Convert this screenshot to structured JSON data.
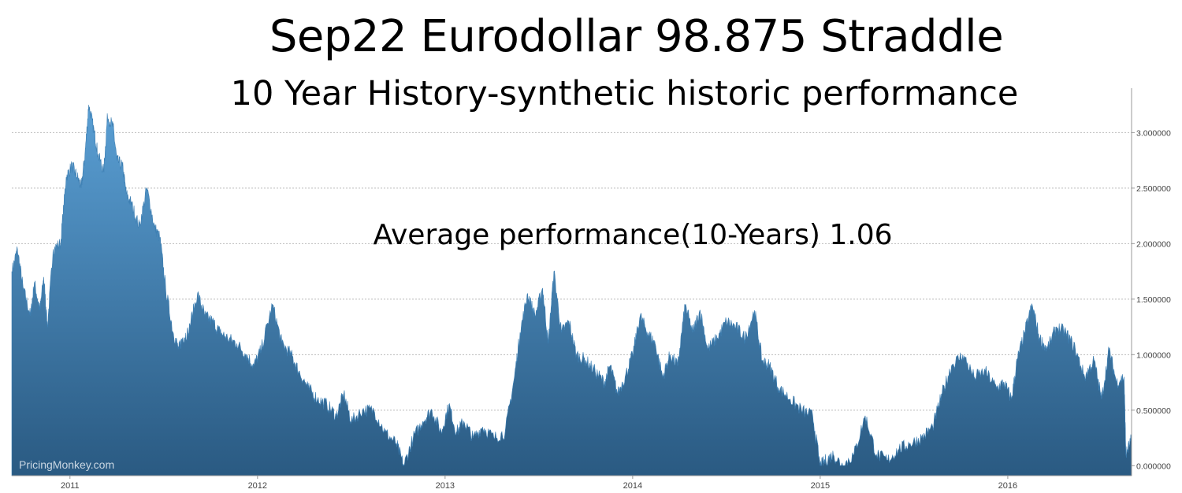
{
  "header": {
    "title": "Sep22 Eurodollar 98.875 Straddle",
    "subtitle": "10 Year History-synthetic historic performance",
    "annotation": "Average performance(10-Years) 1.06",
    "watermark": "PricingMonkey.com"
  },
  "colors": {
    "area_top": "#5a9fd4",
    "area_bottom": "#2a5a82",
    "grid": "#bbbbbb",
    "axis": "#999999"
  },
  "chart_data": {
    "type": "area",
    "title": "Sep22 Eurodollar 98.875 Straddle",
    "subtitle": "10 Year History-synthetic historic performance",
    "xlabel": "",
    "ylabel": "",
    "grid": true,
    "y_axis_position": "right",
    "xlim": [
      2010.69,
      2016.66
    ],
    "ylim": [
      -0.09,
      3.4
    ],
    "y_ticks": [
      0,
      0.5,
      1,
      1.5,
      2,
      2.5,
      3
    ],
    "y_tick_labels": [
      "0.000000",
      "0.500000",
      "1.000000",
      "1.500000",
      "2.000000",
      "2.500000",
      "3.000000"
    ],
    "x_ticks": [
      2011,
      2012,
      2013,
      2014,
      2015,
      2016
    ],
    "x_tick_labels": [
      "2011",
      "2012",
      "2013",
      "2014",
      "2015",
      "2016"
    ],
    "series": [
      {
        "x": [
          2010.69,
          2010.72,
          2010.75,
          2010.79,
          2010.81,
          2010.84,
          2010.86,
          2010.88,
          2010.91,
          2010.95,
          2010.98,
          2011.01,
          2011.04,
          2011.06,
          2011.08,
          2011.1,
          2011.13,
          2011.15,
          2011.18,
          2011.2,
          2011.23,
          2011.25,
          2011.28,
          2011.3,
          2011.33,
          2011.37,
          2011.41,
          2011.45,
          2011.48,
          2011.51,
          2011.55,
          2011.58,
          2011.6,
          2011.63,
          2011.68,
          2011.72,
          2011.76,
          2011.8,
          2011.84,
          2011.89,
          2011.94,
          2011.98,
          2012.02,
          2012.08,
          2012.13,
          2012.18,
          2012.22,
          2012.27,
          2012.32,
          2012.37,
          2012.42,
          2012.46,
          2012.5,
          2012.56,
          2012.62,
          2012.68,
          2012.74,
          2012.78,
          2012.83,
          2012.88,
          2012.93,
          2012.98,
          2013.02,
          2013.06,
          2013.1,
          2013.15,
          2013.2,
          2013.26,
          2013.32,
          2013.37,
          2013.4,
          2013.44,
          2013.48,
          2013.52,
          2013.55,
          2013.58,
          2013.62,
          2013.66,
          2013.7,
          2013.75,
          2013.8,
          2013.85,
          2013.88,
          2013.92,
          2013.96,
          2014.0,
          2014.04,
          2014.08,
          2014.12,
          2014.16,
          2014.2,
          2014.24,
          2014.28,
          2014.32,
          2014.36,
          2014.4,
          2014.45,
          2014.5,
          2014.55,
          2014.6,
          2014.65,
          2014.69,
          2014.73,
          2014.78,
          2014.84,
          2014.9,
          2014.96,
          2015.0,
          2015.03,
          2015.07,
          2015.12,
          2015.18,
          2015.24,
          2015.3,
          2015.36,
          2015.42,
          2015.48,
          2015.54,
          2015.6,
          2015.65,
          2015.7,
          2015.76,
          2015.82,
          2015.88,
          2015.94,
          2015.98,
          2016.02,
          2016.05,
          2016.09,
          2016.13,
          2016.17,
          2016.21,
          2016.26,
          2016.31,
          2016.36,
          2016.41,
          2016.46,
          2016.5,
          2016.54,
          2016.58,
          2016.62,
          2016.63,
          2016.66
        ],
        "values": [
          1.75,
          1.95,
          1.6,
          1.35,
          1.65,
          1.4,
          1.7,
          1.25,
          1.95,
          2.0,
          2.6,
          2.7,
          2.6,
          2.5,
          2.8,
          3.25,
          3.0,
          2.8,
          2.65,
          3.15,
          3.05,
          2.75,
          2.7,
          2.45,
          2.35,
          2.15,
          2.5,
          2.15,
          2.05,
          1.6,
          1.2,
          1.05,
          1.15,
          1.2,
          1.55,
          1.35,
          1.3,
          1.2,
          1.15,
          1.1,
          1.0,
          0.9,
          1.05,
          1.45,
          1.1,
          1.0,
          0.85,
          0.7,
          0.6,
          0.55,
          0.45,
          0.65,
          0.4,
          0.5,
          0.5,
          0.3,
          0.2,
          0.0,
          0.25,
          0.4,
          0.5,
          0.3,
          0.55,
          0.3,
          0.4,
          0.25,
          0.35,
          0.25,
          0.3,
          0.8,
          1.2,
          1.55,
          1.35,
          1.6,
          1.1,
          1.75,
          1.2,
          1.3,
          1.0,
          0.95,
          0.85,
          0.75,
          0.9,
          0.65,
          0.8,
          1.0,
          1.35,
          1.2,
          1.1,
          0.8,
          1.0,
          0.9,
          1.45,
          1.2,
          1.4,
          1.05,
          1.15,
          1.3,
          1.25,
          1.15,
          1.4,
          0.95,
          0.9,
          0.7,
          0.6,
          0.5,
          0.45,
          0.0,
          0.05,
          0.1,
          0.0,
          0.1,
          0.45,
          0.1,
          0.05,
          0.15,
          0.2,
          0.25,
          0.35,
          0.65,
          0.9,
          1.0,
          0.8,
          0.85,
          0.7,
          0.75,
          0.6,
          0.95,
          1.2,
          1.45,
          1.15,
          1.05,
          1.25,
          1.2,
          1.05,
          0.8,
          0.95,
          0.6,
          1.05,
          0.75,
          0.8,
          0.1,
          0.25
        ]
      }
    ]
  }
}
